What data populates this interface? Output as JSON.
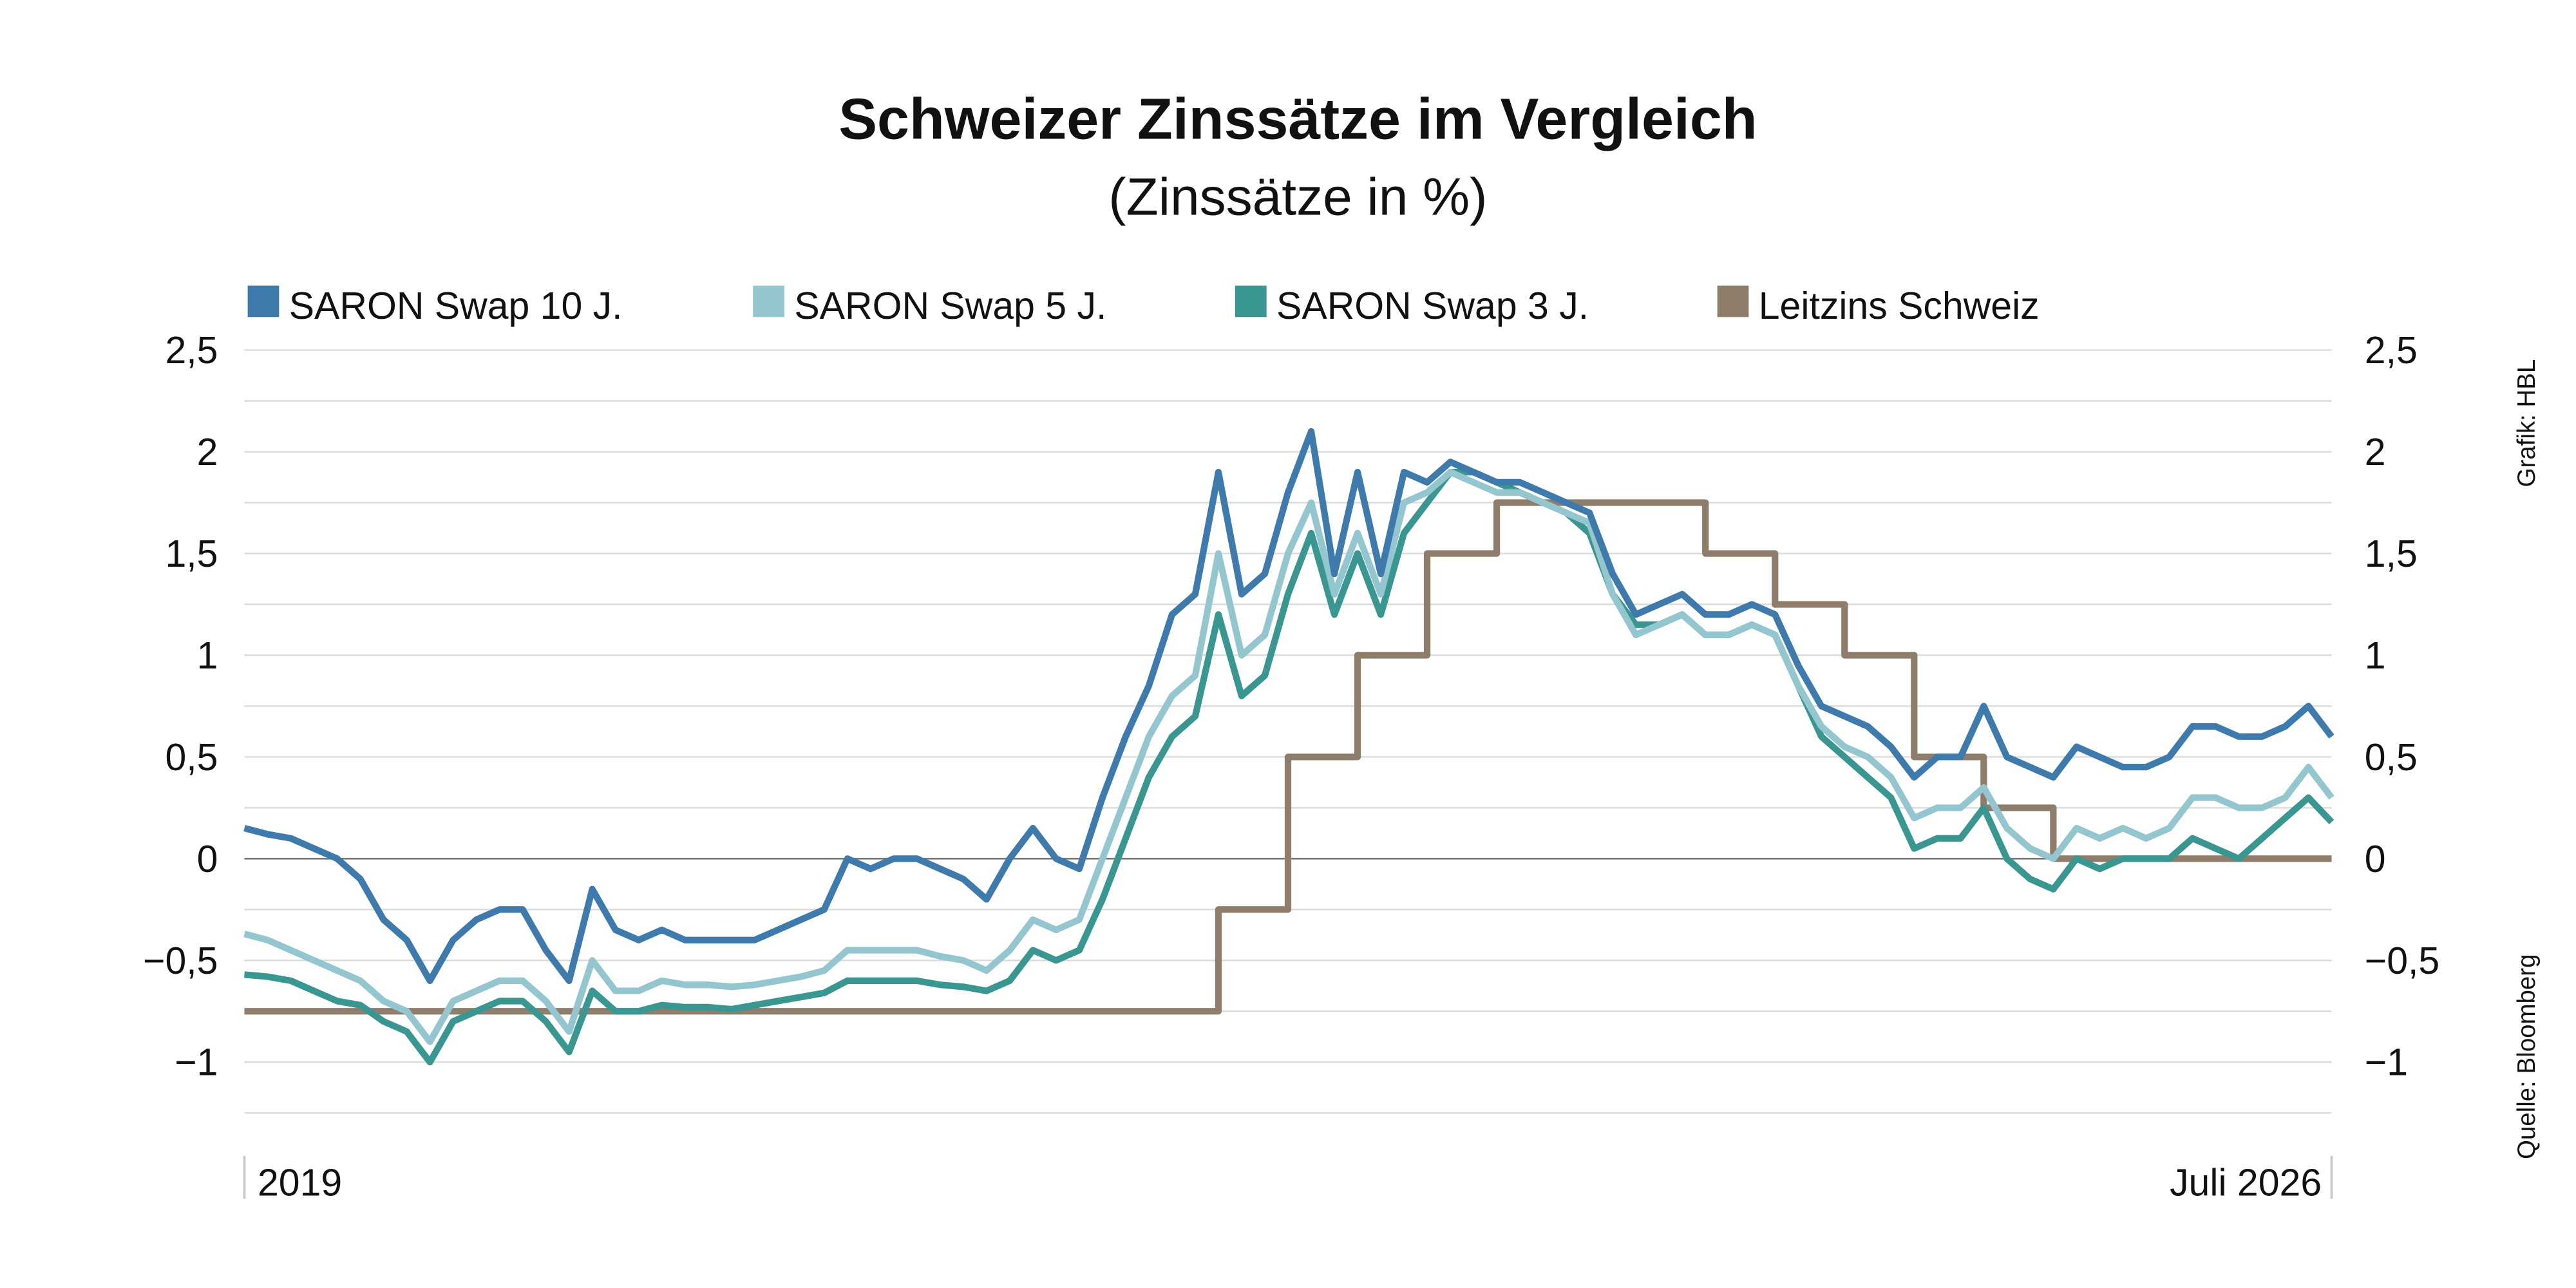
{
  "chart_data": {
    "type": "line",
    "title": "Schweizer Zinssätze im Vergleich",
    "subtitle": "(Zinssätze in %)",
    "credit": "Grafik: HBL",
    "source": "Quelle: Bloomberg",
    "categories": [
      "2019",
      null,
      null,
      null,
      null,
      null,
      null,
      null,
      null,
      null,
      null,
      null,
      null,
      null,
      null,
      null,
      null,
      null,
      null,
      null,
      null,
      null,
      null,
      null,
      null,
      null,
      null,
      null,
      null,
      null,
      null,
      null,
      null,
      null,
      null,
      null,
      null,
      null,
      null,
      null,
      null,
      null,
      null,
      null,
      null,
      null,
      null,
      null,
      null,
      null,
      null,
      null,
      null,
      null,
      null,
      null,
      null,
      null,
      null,
      null,
      null,
      null,
      null,
      null,
      null,
      null,
      null,
      null,
      null,
      null,
      null,
      null,
      null,
      null,
      null,
      null,
      null,
      null,
      null,
      null,
      null,
      null,
      null,
      null,
      null,
      null,
      null,
      null,
      null,
      null,
      "Juli 2026"
    ],
    "series": [
      {
        "name": "SARON Swap 10 J.",
        "color": "#3f7aad",
        "values": [
          0.15,
          0.12,
          0.1,
          0.05,
          0.0,
          -0.1,
          -0.3,
          -0.4,
          -0.6,
          -0.4,
          -0.3,
          -0.25,
          -0.25,
          -0.45,
          -0.6,
          -0.15,
          -0.35,
          -0.4,
          -0.35,
          -0.4,
          -0.4,
          -0.4,
          -0.4,
          -0.35,
          -0.3,
          -0.25,
          0.0,
          -0.05,
          0.0,
          0.0,
          -0.05,
          -0.1,
          -0.2,
          0.0,
          0.15,
          0.0,
          -0.05,
          0.3,
          0.6,
          0.85,
          1.2,
          1.3,
          1.9,
          1.3,
          1.4,
          1.8,
          2.1,
          1.4,
          1.9,
          1.4,
          1.9,
          1.85,
          1.95,
          1.9,
          1.85,
          1.85,
          1.8,
          1.75,
          1.7,
          1.4,
          1.2,
          1.25,
          1.3,
          1.2,
          1.2,
          1.25,
          1.2,
          0.95,
          0.75,
          0.7,
          0.65,
          0.55,
          0.4,
          0.5,
          0.5,
          0.75,
          0.5,
          0.45,
          0.4,
          0.55,
          0.5,
          0.45,
          0.45,
          0.5,
          0.65,
          0.65,
          0.6,
          0.6,
          0.65,
          0.75,
          0.6
        ]
      },
      {
        "name": "SARON Swap 5 J.",
        "color": "#94c6d0",
        "values": [
          -0.37,
          -0.4,
          -0.45,
          -0.5,
          -0.55,
          -0.6,
          -0.7,
          -0.75,
          -0.9,
          -0.7,
          -0.65,
          -0.6,
          -0.6,
          -0.7,
          -0.85,
          -0.5,
          -0.65,
          -0.65,
          -0.6,
          -0.62,
          -0.62,
          -0.63,
          -0.62,
          -0.6,
          -0.58,
          -0.55,
          -0.45,
          -0.45,
          -0.45,
          -0.45,
          -0.48,
          -0.5,
          -0.55,
          -0.45,
          -0.3,
          -0.35,
          -0.3,
          0.0,
          0.3,
          0.6,
          0.8,
          0.9,
          1.5,
          1.0,
          1.1,
          1.5,
          1.75,
          1.3,
          1.6,
          1.3,
          1.75,
          1.8,
          1.9,
          1.85,
          1.8,
          1.8,
          1.75,
          1.7,
          1.65,
          1.3,
          1.1,
          1.15,
          1.2,
          1.1,
          1.1,
          1.15,
          1.1,
          0.85,
          0.65,
          0.55,
          0.5,
          0.4,
          0.2,
          0.25,
          0.25,
          0.35,
          0.15,
          0.05,
          0.0,
          0.15,
          0.1,
          0.15,
          0.1,
          0.15,
          0.3,
          0.3,
          0.25,
          0.25,
          0.3,
          0.45,
          0.3
        ]
      },
      {
        "name": "SARON Swap 3 J.",
        "color": "#3a9690",
        "values": [
          -0.57,
          -0.58,
          -0.6,
          -0.65,
          -0.7,
          -0.72,
          -0.8,
          -0.85,
          -1.0,
          -0.8,
          -0.75,
          -0.7,
          -0.7,
          -0.8,
          -0.95,
          -0.65,
          -0.75,
          -0.75,
          -0.72,
          -0.73,
          -0.73,
          -0.74,
          -0.72,
          -0.7,
          -0.68,
          -0.66,
          -0.6,
          -0.6,
          -0.6,
          -0.6,
          -0.62,
          -0.63,
          -0.65,
          -0.6,
          -0.45,
          -0.5,
          -0.45,
          -0.2,
          0.1,
          0.4,
          0.6,
          0.7,
          1.2,
          0.8,
          0.9,
          1.3,
          1.6,
          1.2,
          1.5,
          1.2,
          1.6,
          1.75,
          1.9,
          1.9,
          1.85,
          1.8,
          1.75,
          1.7,
          1.6,
          1.3,
          1.15,
          1.15,
          1.2,
          1.1,
          1.1,
          1.15,
          1.1,
          0.85,
          0.6,
          0.5,
          0.4,
          0.3,
          0.05,
          0.1,
          0.1,
          0.25,
          0.0,
          -0.1,
          -0.15,
          0.0,
          -0.05,
          0.0,
          0.0,
          0.0,
          0.1,
          0.05,
          0.0,
          0.1,
          0.2,
          0.3,
          0.18
        ]
      },
      {
        "name": "Leitzins Schweiz",
        "color": "#8f7d6c",
        "line_style": "step",
        "values": [
          -0.75,
          -0.75,
          -0.75,
          -0.75,
          -0.75,
          -0.75,
          -0.75,
          -0.75,
          -0.75,
          -0.75,
          -0.75,
          -0.75,
          -0.75,
          -0.75,
          -0.75,
          -0.75,
          -0.75,
          -0.75,
          -0.75,
          -0.75,
          -0.75,
          -0.75,
          -0.75,
          -0.75,
          -0.75,
          -0.75,
          -0.75,
          -0.75,
          -0.75,
          -0.75,
          -0.75,
          -0.75,
          -0.75,
          -0.75,
          -0.75,
          -0.75,
          -0.75,
          -0.75,
          -0.75,
          -0.75,
          -0.75,
          -0.75,
          -0.25,
          -0.25,
          -0.25,
          0.5,
          0.5,
          0.5,
          1.0,
          1.0,
          1.0,
          1.5,
          1.5,
          1.5,
          1.75,
          1.75,
          1.75,
          1.75,
          1.75,
          1.75,
          1.75,
          1.75,
          1.75,
          1.5,
          1.5,
          1.5,
          1.25,
          1.25,
          1.25,
          1.0,
          1.0,
          1.0,
          0.5,
          0.5,
          0.5,
          0.25,
          0.25,
          0.25,
          0,
          0,
          0,
          0,
          0,
          0,
          0,
          0,
          0,
          0,
          0,
          0,
          0
        ]
      }
    ],
    "ylim": [
      -1.25,
      2.5
    ],
    "yticks": [
      {
        "value": 2.5,
        "label": "2,5"
      },
      2,
      {
        "value": 1.5,
        "label": "1,5"
      },
      1,
      {
        "value": 0.5,
        "label": "0,5"
      },
      0,
      {
        "value": -0.5,
        "label": "−0,5"
      },
      {
        "value": -1,
        "label": "−1"
      }
    ],
    "y2lim": [
      -1.25,
      2.5
    ],
    "y2ticks": [
      {
        "value": 2.5,
        "label": "2,5"
      },
      2,
      {
        "value": 1.5,
        "label": "1,5"
      },
      1,
      {
        "value": 0.5,
        "label": "0,5"
      },
      0,
      {
        "value": -0.5,
        "label": "−0,5"
      },
      {
        "value": -1,
        "label": "−1"
      }
    ],
    "minor_yticks": [
      2.25,
      1.75,
      1.25,
      0.75,
      0.25,
      -0.25,
      -0.75,
      -1.25
    ],
    "grid": true,
    "legend": "top"
  }
}
